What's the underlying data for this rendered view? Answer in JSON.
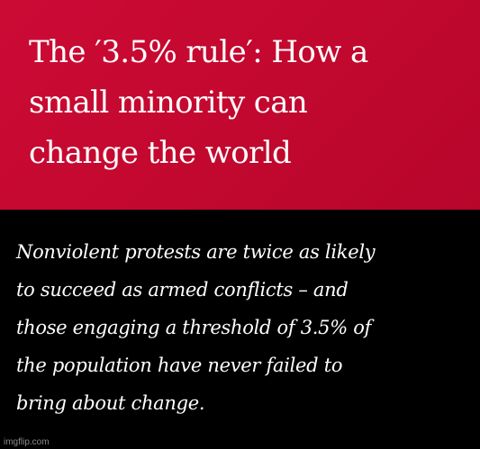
{
  "headline": {
    "lines": [
      "The ′3.5% rule′: How a",
      "small minority can",
      "change the world"
    ]
  },
  "quote": {
    "lines": [
      "Nonviolent protests are twice as likely",
      "to succeed as armed conflicts – and",
      "those engaging a threshold of 3.5% of",
      "the population have never failed to",
      "bring about change."
    ]
  },
  "watermark": "imgflip.com",
  "colors": {
    "headline_background": "#c3082f",
    "quote_background": "#000000",
    "text": "#ffffff"
  }
}
